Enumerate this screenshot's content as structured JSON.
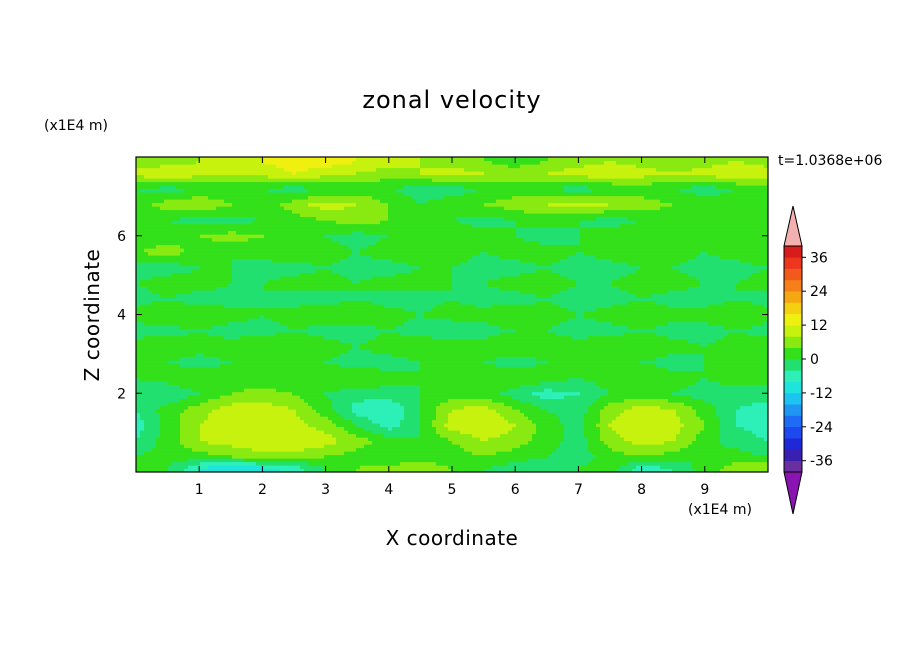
{
  "chart_data": {
    "type": "heatmap",
    "title": "zonal velocity",
    "xlabel": "X coordinate",
    "ylabel": "Z coordinate",
    "x_units": "(x1E4 m)",
    "y_units": "(x1E4 m)",
    "timestamp": "t=1.0368e+06",
    "xlim": [
      0,
      10
    ],
    "ylim": [
      0,
      8
    ],
    "xticks": [
      1,
      2,
      3,
      4,
      5,
      6,
      7,
      8,
      9
    ],
    "yticks": [
      2,
      4,
      6
    ],
    "colorbar": {
      "levels": [
        -40,
        -36,
        -32,
        -28,
        -24,
        -20,
        -16,
        -12,
        -8,
        -4,
        0,
        4,
        8,
        12,
        16,
        20,
        24,
        28,
        32,
        36,
        40
      ],
      "labels": [
        "36",
        "24",
        "12",
        "0",
        "-12",
        "-24",
        "-36"
      ],
      "label_values": [
        36,
        24,
        12,
        0,
        -12,
        -24,
        -36
      ],
      "colors": [
        "#6a2f9e",
        "#3a1fb0",
        "#1e28d8",
        "#1e48f0",
        "#1e6cf5",
        "#1e96f2",
        "#1ec4f0",
        "#1ee4dc",
        "#2cf0b8",
        "#22e070",
        "#33e01a",
        "#88ea10",
        "#c6f20e",
        "#f0f010",
        "#f5d010",
        "#f6a812",
        "#f5801a",
        "#f25a1c",
        "#ec361e",
        "#d81c1c"
      ],
      "under_color": "#8a14b2",
      "over_color": "#f2b0b0"
    },
    "field_grid": {
      "x": [
        0,
        0.5,
        1,
        1.5,
        2,
        2.5,
        3,
        3.5,
        4,
        4.5,
        5,
        5.5,
        6,
        6.5,
        7,
        7.5,
        8,
        8.5,
        9,
        9.5,
        10
      ],
      "z": [
        0.1,
        0.4,
        0.8,
        1.2,
        1.6,
        2.0,
        2.4,
        2.8,
        3.2,
        3.6,
        4.0,
        4.4,
        4.8,
        5.2,
        5.6,
        6.0,
        6.4,
        6.8,
        7.2,
        7.6,
        7.9
      ],
      "u": [
        [
          4,
          0,
          -8,
          -12,
          -10,
          -6,
          0,
          4,
          6,
          8,
          4,
          0,
          -2,
          -4,
          0,
          2,
          -6,
          -4,
          2,
          6,
          8
        ],
        [
          0,
          2,
          2,
          4,
          6,
          6,
          4,
          2,
          0,
          0,
          2,
          4,
          2,
          0,
          -2,
          2,
          4,
          2,
          0,
          2,
          0
        ],
        [
          -4,
          2,
          8,
          10,
          12,
          12,
          10,
          6,
          2,
          0,
          4,
          8,
          6,
          2,
          -2,
          6,
          10,
          8,
          2,
          -2,
          -4
        ],
        [
          -6,
          2,
          8,
          12,
          12,
          10,
          6,
          0,
          -6,
          0,
          10,
          12,
          8,
          2,
          -2,
          8,
          12,
          10,
          4,
          -4,
          -6
        ],
        [
          -4,
          2,
          6,
          10,
          10,
          8,
          2,
          -6,
          -8,
          0,
          8,
          10,
          4,
          0,
          -2,
          6,
          10,
          8,
          2,
          -4,
          -6
        ],
        [
          -2,
          -4,
          0,
          4,
          6,
          4,
          0,
          -2,
          -2,
          0,
          2,
          2,
          -2,
          -6,
          -4,
          0,
          2,
          0,
          -2,
          -2,
          -2
        ],
        [
          0,
          2,
          4,
          2,
          0,
          0,
          2,
          4,
          2,
          0,
          0,
          2,
          4,
          2,
          0,
          2,
          4,
          2,
          0,
          2,
          2
        ],
        [
          0,
          0,
          -2,
          0,
          2,
          2,
          0,
          -2,
          -2,
          0,
          2,
          0,
          -2,
          0,
          0,
          2,
          0,
          -2,
          0,
          2,
          0
        ],
        [
          2,
          4,
          2,
          2,
          4,
          4,
          2,
          0,
          2,
          4,
          2,
          2,
          4,
          2,
          2,
          4,
          4,
          2,
          0,
          2,
          4
        ],
        [
          -2,
          -2,
          0,
          -2,
          -2,
          0,
          -2,
          -2,
          0,
          -2,
          -4,
          -2,
          0,
          0,
          -2,
          -2,
          0,
          -2,
          -2,
          0,
          -2
        ],
        [
          2,
          4,
          4,
          2,
          0,
          2,
          4,
          4,
          2,
          0,
          2,
          2,
          4,
          2,
          0,
          2,
          4,
          2,
          2,
          4,
          2
        ],
        [
          -2,
          0,
          -2,
          -2,
          0,
          -2,
          -2,
          0,
          -2,
          -2,
          0,
          -2,
          -2,
          0,
          -2,
          -2,
          0,
          -2,
          -2,
          0,
          -2
        ],
        [
          0,
          2,
          2,
          0,
          0,
          2,
          2,
          0,
          2,
          2,
          0,
          0,
          2,
          2,
          0,
          0,
          2,
          2,
          0,
          0,
          2
        ],
        [
          -2,
          -2,
          0,
          0,
          -2,
          -2,
          0,
          -2,
          -2,
          0,
          0,
          -2,
          -2,
          0,
          -2,
          -2,
          0,
          0,
          -2,
          -2,
          0
        ],
        [
          4,
          6,
          2,
          0,
          2,
          4,
          2,
          0,
          2,
          4,
          2,
          0,
          2,
          2,
          0,
          2,
          4,
          2,
          0,
          2,
          4
        ],
        [
          0,
          2,
          4,
          6,
          4,
          2,
          0,
          -2,
          0,
          2,
          4,
          2,
          0,
          -2,
          0,
          2,
          4,
          2,
          0,
          2,
          2
        ],
        [
          0,
          0,
          -2,
          -2,
          0,
          2,
          4,
          6,
          4,
          2,
          0,
          -2,
          0,
          2,
          0,
          -2,
          0,
          2,
          4,
          2,
          0
        ],
        [
          2,
          6,
          8,
          4,
          2,
          6,
          10,
          8,
          4,
          0,
          2,
          4,
          6,
          8,
          10,
          8,
          6,
          4,
          2,
          2,
          4
        ],
        [
          0,
          -2,
          0,
          2,
          0,
          -2,
          0,
          2,
          0,
          -2,
          -2,
          0,
          2,
          0,
          -2,
          0,
          2,
          0,
          -2,
          0,
          2
        ],
        [
          10,
          12,
          10,
          8,
          10,
          12,
          10,
          8,
          6,
          8,
          10,
          8,
          6,
          8,
          10,
          12,
          10,
          8,
          10,
          12,
          10
        ],
        [
          4,
          6,
          8,
          10,
          12,
          14,
          14,
          12,
          10,
          8,
          6,
          4,
          2,
          4,
          6,
          8,
          6,
          4,
          6,
          8,
          6
        ]
      ]
    }
  }
}
